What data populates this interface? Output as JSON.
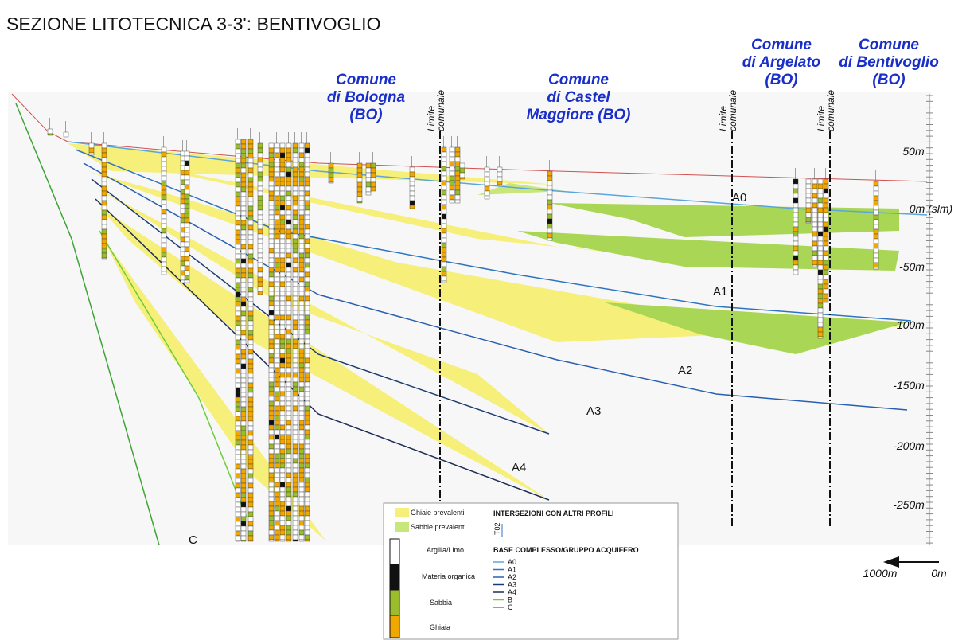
{
  "title": "SEZIONE LITOTECNICA 3-3': BENTIVOGLIO",
  "municipalities": [
    {
      "lines": [
        "Comune",
        "di Bologna",
        "(BO)"
      ]
    },
    {
      "lines": [
        "Comune",
        "di Castel",
        "Maggiore (BO)"
      ]
    },
    {
      "lines": [
        "Comune",
        "di Argelato",
        "(BO)"
      ]
    },
    {
      "lines": [
        "Comune",
        "di Bentivoglio",
        "(BO)"
      ]
    }
  ],
  "boundaries": [
    {
      "lines": [
        "Limite",
        "comunale"
      ]
    },
    {
      "lines": [
        "Limite",
        "comunale"
      ]
    },
    {
      "lines": [
        "Limite",
        "comunale"
      ]
    }
  ],
  "depth_labels": [
    "50m",
    "0m (slm)",
    "-50m",
    "-100m",
    "-150m",
    "-200m",
    "-250m"
  ],
  "units": [
    "A0",
    "A1",
    "A2",
    "A3",
    "A4",
    "B",
    "C"
  ],
  "legend": {
    "fill_items": [
      "Ghiaie prevalenti",
      "Sabbie prevalenti"
    ],
    "intersections_title": "INTERSEZIONI CON ALTRI PROFILI",
    "intersection_code": "T02",
    "column_items": [
      "Argilla/Limo",
      "Materia organica",
      "Sabbia",
      "Ghiaia"
    ],
    "base_title": "BASE COMPLESSO/GRUPPO ACQUIFERO",
    "base_items": [
      "A0",
      "A1",
      "A2",
      "A3",
      "A4",
      "B",
      "C"
    ]
  },
  "scale": {
    "left": "1000m",
    "right": "0m"
  }
}
